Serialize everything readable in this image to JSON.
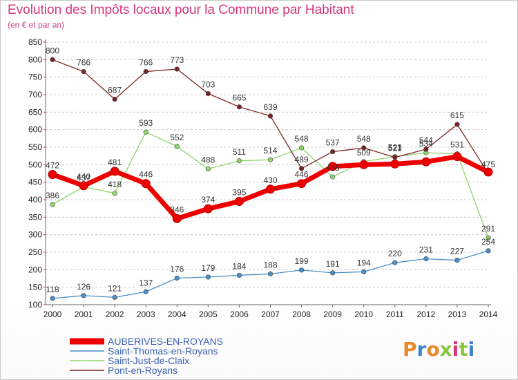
{
  "header": {
    "title": "Evolution des Impôts locaux pour la Commune par Habitant",
    "subtitle": "(en € et par an)"
  },
  "logo": {
    "text": "Proxiti",
    "colors": [
      "#e8892b",
      "#3a83c8",
      "#e8892b",
      "#8cc63f",
      "#d4377d",
      "#8cc63f",
      "#3a83c8"
    ]
  },
  "chart_data": {
    "type": "line",
    "title": "Evolution des Impôts locaux pour la Commune par Habitant",
    "subtitle": "(en € et par an)",
    "x": [
      "2000",
      "2001",
      "2002",
      "2003",
      "2004",
      "2005",
      "2006",
      "2007",
      "2008",
      "2009",
      "2010",
      "2011",
      "2012",
      "2013",
      "2014"
    ],
    "ylim": [
      100,
      850
    ],
    "yticks": [
      100,
      150,
      200,
      250,
      300,
      350,
      400,
      450,
      500,
      550,
      600,
      650,
      700,
      750,
      800,
      850
    ],
    "grid": "horizontal-dashed",
    "legend": "bottom-left",
    "series": [
      {
        "name": "AUBERIVES-EN-ROYANS",
        "color": "#ee0000",
        "values": [
          472,
          440,
          481,
          446,
          346,
          374,
          395,
          430,
          446,
          495,
          500,
          502,
          508,
          523,
          479
        ],
        "labels": [
          "472",
          "440",
          "481",
          "446",
          "346",
          "374",
          "395",
          "430",
          "446",
          "",
          "",
          "",
          "",
          "",
          ""
        ]
      },
      {
        "name": "Saint-Thomas-en-Royans",
        "color": "#4a8fc9",
        "values": [
          118,
          126,
          121,
          137,
          176,
          179,
          184,
          188,
          199,
          191,
          194,
          220,
          231,
          227,
          254
        ],
        "labels": [
          "118",
          "126",
          "121",
          "137",
          "176",
          "179",
          "184",
          "188",
          "199",
          "191",
          "194",
          "220",
          "231",
          "227",
          "254"
        ]
      },
      {
        "name": "Saint-Just-de-Claix",
        "color": "#8ed66a",
        "values": [
          386,
          437,
          418,
          593,
          552,
          488,
          511,
          514,
          548,
          465,
          509,
          523,
          534,
          531,
          291
        ],
        "labels": [
          "386",
          "437",
          "418",
          "593",
          "552",
          "488",
          "511",
          "514",
          "548",
          "465",
          "509",
          "523",
          "534",
          "531",
          "291"
        ]
      },
      {
        "name": "Pont-en-Royans",
        "color": "#7a2424",
        "values": [
          800,
          766,
          687,
          766,
          773,
          703,
          665,
          639,
          489,
          537,
          548,
          521,
          544,
          615,
          475
        ],
        "labels": [
          "800",
          "766",
          "687",
          "766",
          "773",
          "703",
          "665",
          "639",
          "489",
          "537",
          "548",
          "521",
          "544",
          "615",
          "475"
        ]
      }
    ]
  }
}
